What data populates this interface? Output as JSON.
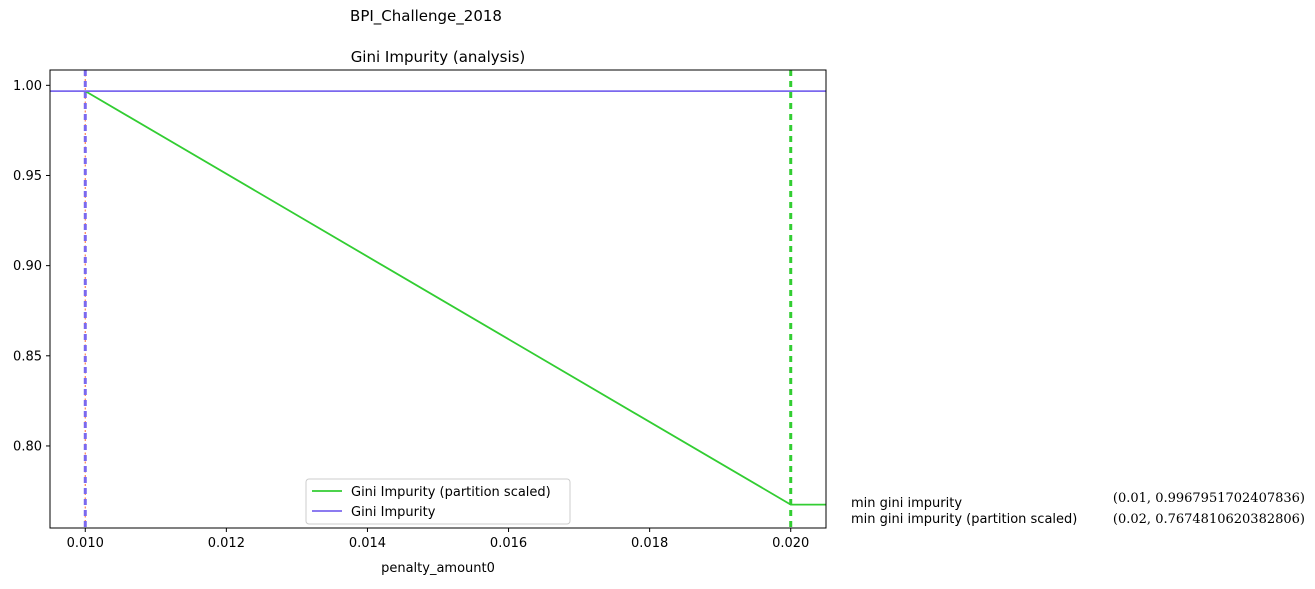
{
  "figure": {
    "suptitle": "BPI_Challenge_2018"
  },
  "chart_data": {
    "type": "line",
    "title": "Gini Impurity (analysis)",
    "xlabel": "penalty_amount0",
    "ylabel": "",
    "xlim": [
      0.0095,
      0.0205
    ],
    "ylim": [
      0.7545,
      1.0085
    ],
    "xticks": [
      "0.010",
      "0.012",
      "0.014",
      "0.016",
      "0.018",
      "0.020"
    ],
    "yticks": [
      "0.80",
      "0.85",
      "0.90",
      "0.95",
      "1.00"
    ],
    "grid": false,
    "legend_position": "lower center",
    "series": [
      {
        "name": "Gini Impurity (partition scaled)",
        "color": "#32cd32",
        "x": [
          0.01,
          0.02,
          0.0205
        ],
        "y": [
          0.9967951702407836,
          0.7674810620382806,
          0.7674810620382806
        ]
      },
      {
        "name": "Gini Impurity",
        "color": "#7b68ee",
        "x": [
          0.0095,
          0.0205
        ],
        "y": [
          0.9967951702407836,
          0.9967951702407836
        ]
      }
    ],
    "vlines": [
      {
        "x": 0.01,
        "color": "#ff7f50",
        "style": "dotted"
      },
      {
        "x": 0.01,
        "color": "#7b68ee",
        "style": "dashed"
      },
      {
        "x": 0.02,
        "color": "#32cd32",
        "style": "dashed"
      }
    ],
    "annotations": {
      "labels": [
        "min gini impurity",
        "min gini impurity (partition scaled)"
      ],
      "values": [
        "(0.01, 0.9967951702407836)",
        "(0.02, 0.7674810620382806)"
      ]
    }
  }
}
